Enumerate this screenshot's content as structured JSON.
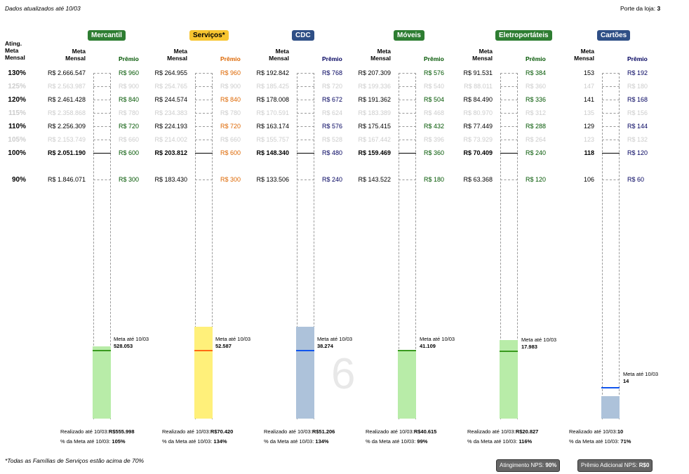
{
  "header": {
    "updated": "Dados atualizados até 10/03",
    "porte_label": "Porte da loja:",
    "porte_value": "3",
    "ating_label": [
      "Ating.",
      "Meta",
      "Mensal"
    ]
  },
  "meta_header": [
    "Meta",
    "Mensal"
  ],
  "premio_header": "Prêmio",
  "percent_rows": [
    "130%",
    "125%",
    "120%",
    "115%",
    "110%",
    "105%",
    "100%",
    "90%"
  ],
  "faded_rows": [
    1,
    3,
    5
  ],
  "meta_line_label": "Meta até 10/03",
  "realizado_label": "Realizado até 10/03:",
  "pct_meta_label": "% da Meta até 10/03:",
  "watermark": "6",
  "chart_data": {
    "type": "bar",
    "categories": [
      "Mercantil",
      "Serviços*",
      "CDC",
      "Móveis",
      "Eletroportáteis",
      "Cartões"
    ],
    "series": [
      {
        "name": "Realizado até 10/03",
        "values": [
          555998,
          70420,
          51206,
          40615,
          20827,
          10
        ],
        "labels": [
          "R$555.998",
          "R$70.420",
          "R$51.206",
          "R$40.615",
          "R$20.827",
          "10"
        ]
      },
      {
        "name": "Meta até 10/03",
        "values": [
          528053,
          52587,
          38274,
          41109,
          17983,
          14
        ],
        "labels": [
          "528.053",
          "52.587",
          "38.274",
          "41.109",
          "17.983",
          "14"
        ]
      }
    ],
    "pct_of_meta": [
      "105%",
      "134%",
      "134%",
      "99%",
      "116%",
      "71%"
    ],
    "goal_levels": [
      "130%",
      "125%",
      "120%",
      "115%",
      "110%",
      "105%",
      "100%",
      "90%"
    ],
    "monthly_goals": [
      [
        "R$ 2.666.547",
        "R$ 2.563.987",
        "R$ 2.461.428",
        "R$ 2.358.868",
        "R$ 2.256.309",
        "R$ 2.153.749",
        "R$ 2.051.190",
        "R$ 1.846.071"
      ],
      [
        "R$ 264.955",
        "R$ 254.765",
        "R$ 244.574",
        "R$ 234.383",
        "R$ 224.193",
        "R$ 214.002",
        "R$ 203.812",
        "R$ 183.430"
      ],
      [
        "R$ 192.842",
        "R$ 185.425",
        "R$ 178.008",
        "R$ 170.591",
        "R$ 163.174",
        "R$ 155.757",
        "R$ 148.340",
        "R$ 133.506"
      ],
      [
        "R$ 207.309",
        "R$ 199.336",
        "R$ 191.362",
        "R$ 183.389",
        "R$ 175.415",
        "R$ 167.442",
        "R$ 159.469",
        "R$ 143.522"
      ],
      [
        "R$ 91.531",
        "R$ 88.011",
        "R$ 84.490",
        "R$ 80.970",
        "R$ 77.449",
        "R$ 73.929",
        "R$ 70.409",
        "R$ 63.368"
      ],
      [
        "153",
        "147",
        "141",
        "135",
        "129",
        "123",
        "118",
        "106"
      ]
    ],
    "prizes": [
      [
        "R$ 960",
        "R$ 900",
        "R$ 840",
        "R$ 780",
        "R$ 720",
        "R$ 660",
        "R$ 600",
        "R$ 300"
      ],
      [
        "R$ 960",
        "R$ 900",
        "R$ 840",
        "R$ 780",
        "R$ 720",
        "R$ 660",
        "R$ 600",
        "R$ 300"
      ],
      [
        "R$ 768",
        "R$ 720",
        "R$ 672",
        "R$ 624",
        "R$ 576",
        "R$ 528",
        "R$ 480",
        "R$ 240"
      ],
      [
        "R$ 576",
        "R$ 540",
        "R$ 504",
        "R$ 468",
        "R$ 432",
        "R$ 396",
        "R$ 360",
        "R$ 180"
      ],
      [
        "R$ 384",
        "R$ 360",
        "R$ 336",
        "R$ 312",
        "R$ 288",
        "R$ 264",
        "R$ 240",
        "R$ 120"
      ],
      [
        "R$ 192",
        "R$ 180",
        "R$ 168",
        "R$ 156",
        "R$ 144",
        "R$ 132",
        "R$ 120",
        "R$ 60"
      ]
    ],
    "colors": {
      "badge": [
        "#2e7d32",
        "#f7c530",
        "#2f4f86",
        "#2e7d32",
        "#2e7d32",
        "#2f4f86"
      ],
      "badge_text": [
        "#ffffff",
        "#000000",
        "#ffffff",
        "#ffffff",
        "#ffffff",
        "#ffffff"
      ],
      "fill": [
        "#b8eca8",
        "#fff07a",
        "#adc2da",
        "#b8eca8",
        "#b8eca8",
        "#adc2da"
      ],
      "meta_line": [
        "#3a9a1f",
        "#ff6a13",
        "#1055ee",
        "#3a9a1f",
        "#3a9a1f",
        "#1055ee"
      ],
      "prize_text": [
        "#005500",
        "#dd6600",
        "#00005e",
        "#005500",
        "#005500",
        "#00005e"
      ]
    }
  },
  "footer": {
    "note": "*Todas as Famílias de Serviços estão acima de 70%",
    "nps_label": "Atingimento NPS:",
    "nps_value": "90%",
    "premio_nps_label": "Prêmio Adicional NPS:",
    "premio_nps_value": "R$0"
  }
}
